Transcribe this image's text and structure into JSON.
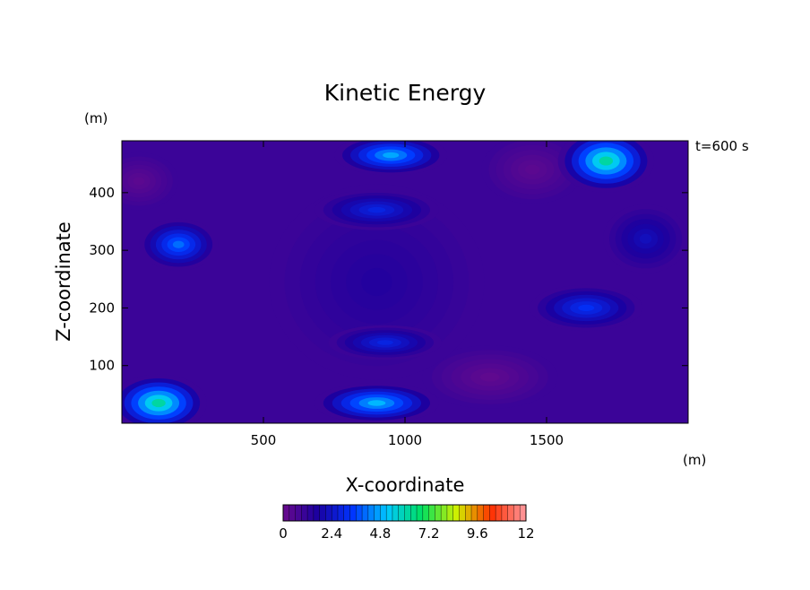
{
  "chart_data": {
    "type": "heatmap",
    "title": "Kinetic Energy",
    "xlabel": "X-coordinate",
    "ylabel": "Z-coordinate",
    "x_unit": "(m)",
    "y_unit": "(m)",
    "time_label": "t=600 s",
    "xlim": [
      0,
      2000
    ],
    "ylim": [
      0,
      490
    ],
    "x_ticks": [
      500,
      1000,
      1500
    ],
    "y_ticks": [
      100,
      200,
      300,
      400
    ],
    "colorbar": {
      "min": 0,
      "max": 12,
      "ticks": [
        "0",
        "2.4",
        "4.8",
        "7.2",
        "9.6",
        "12"
      ],
      "colormap": [
        "#6a0a8c",
        "#1a00a0",
        "#0034ff",
        "#00c8ff",
        "#00e060",
        "#d0f000",
        "#ff3000",
        "#ff9aa0"
      ]
    },
    "features": [
      {
        "x": 900,
        "z": 245,
        "sx": 170,
        "sz": 45,
        "value": 0.3
      },
      {
        "x": 900,
        "z": 245,
        "sx": 380,
        "sz": 170,
        "value": 1.6
      },
      {
        "x": 900,
        "z": 370,
        "sx": 220,
        "sz": 35,
        "value": 3.2
      },
      {
        "x": 950,
        "z": 465,
        "sx": 200,
        "sz": 35,
        "value": 5.4
      },
      {
        "x": 930,
        "z": 140,
        "sx": 200,
        "sz": 30,
        "value": 3.2
      },
      {
        "x": 900,
        "z": 35,
        "sx": 220,
        "sz": 35,
        "value": 5.6
      },
      {
        "x": 130,
        "z": 35,
        "sx": 170,
        "sz": 50,
        "value": 7.0
      },
      {
        "x": 200,
        "z": 310,
        "sx": 140,
        "sz": 45,
        "value": 4.6
      },
      {
        "x": 1710,
        "z": 455,
        "sx": 170,
        "sz": 55,
        "value": 7.0
      },
      {
        "x": 1640,
        "z": 200,
        "sx": 200,
        "sz": 40,
        "value": 3.6
      },
      {
        "x": 1850,
        "z": 320,
        "sx": 150,
        "sz": 60,
        "value": 2.4
      },
      {
        "x": 60,
        "z": 420,
        "sx": 140,
        "sz": 50,
        "value": 0.2
      },
      {
        "x": 1300,
        "z": 80,
        "sx": 240,
        "sz": 55,
        "value": 0.1
      },
      {
        "x": 1450,
        "z": 440,
        "sx": 180,
        "sz": 60,
        "value": 0.2
      }
    ]
  }
}
